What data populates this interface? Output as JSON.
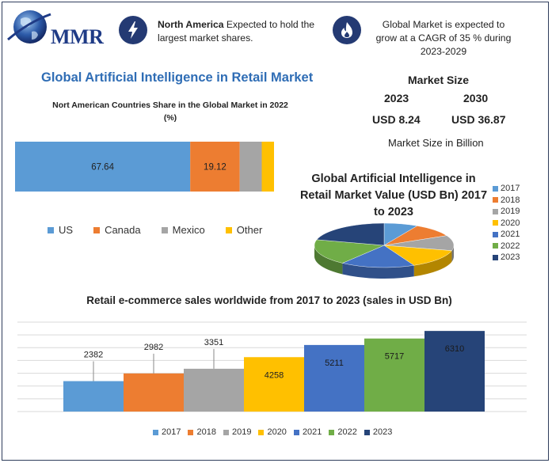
{
  "logo": {
    "text": "MMR"
  },
  "info": [
    {
      "icon": "lightning-icon",
      "bold": "North America",
      "text": " Expected to hold the largest market shares."
    },
    {
      "icon": "flame-icon",
      "text": "Global Market is expected to grow at a CAGR of 35 % during 2023-2029"
    }
  ],
  "market_size": {
    "title": "Market Size",
    "year_a": "2023",
    "year_b": "2030",
    "value_a": "USD 8.24",
    "value_b": "USD 36.87",
    "footnote": "Market Size in Billion"
  },
  "colors": {
    "US": "#5b9bd5",
    "Canada": "#ed7d31",
    "Mexico": "#a5a5a5",
    "Other": "#ffc000",
    "y2017": "#5b9bd5",
    "y2018": "#ed7d31",
    "y2019": "#a5a5a5",
    "y2020": "#ffc000",
    "y2021": "#4472c4",
    "y2022": "#70ad47",
    "y2023": "#264478"
  },
  "chart_data": [
    {
      "type": "bar",
      "orientation": "horizontal-stacked",
      "title": "Global Artificial Intelligence in Retail Market",
      "subtitle": "Nort American Countries Share in the Global Market in 2022 (%)",
      "categories": [
        "US",
        "Canada",
        "Mexico",
        "Other"
      ],
      "values": [
        67.64,
        19.12,
        8.5,
        4.74
      ],
      "data_labels": [
        "67.64",
        "19.12",
        "",
        ""
      ],
      "legend_position": "bottom"
    },
    {
      "type": "pie",
      "title": "Global Artificial Intelligence in Retail Market Value (USD Bn) 2017 to 2023",
      "categories": [
        "2017",
        "2018",
        "2019",
        "2020",
        "2021",
        "2022",
        "2023"
      ],
      "values": [
        2382,
        2982,
        3351,
        4258,
        5211,
        5717,
        6310
      ],
      "legend_position": "right"
    },
    {
      "type": "bar",
      "title": "Retail e-commerce sales worldwide from 2017 to 2023 (sales in USD Bn)",
      "categories": [
        "2017",
        "2018",
        "2019",
        "2020",
        "2021",
        "2022",
        "2023"
      ],
      "values": [
        2382,
        2982,
        3351,
        4258,
        5211,
        5717,
        6310
      ],
      "ylim": [
        0,
        7000
      ],
      "grid": true,
      "legend_position": "bottom"
    }
  ]
}
